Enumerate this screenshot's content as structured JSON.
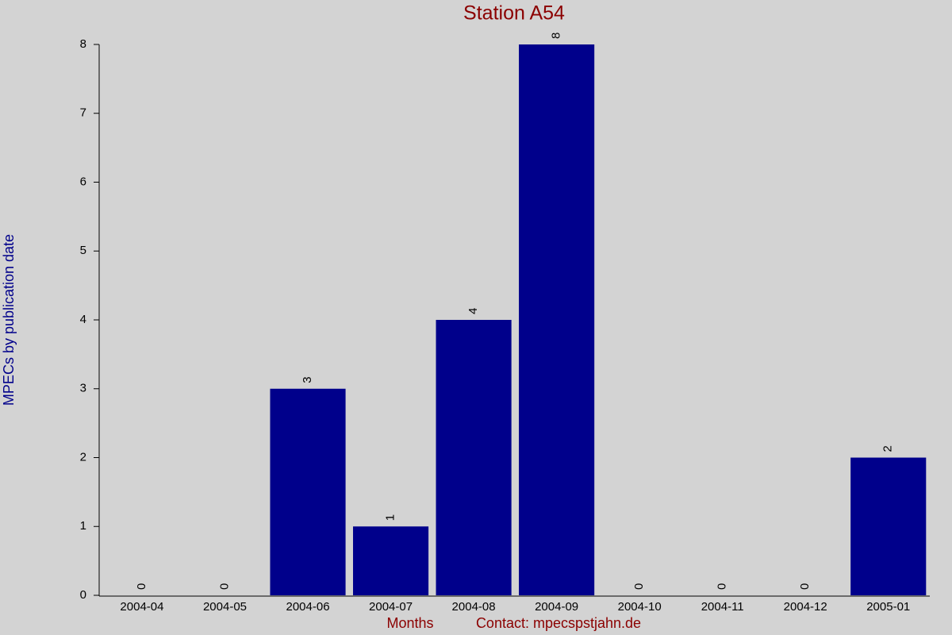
{
  "chart_data": {
    "type": "bar",
    "title": "Station A54",
    "xlabel": "Months",
    "credit": "Contact: mpecspstjahn.de",
    "ylabel": "MPECs by publication date",
    "categories": [
      "2004-04",
      "2004-05",
      "2004-06",
      "2004-07",
      "2004-08",
      "2004-09",
      "2004-10",
      "2004-11",
      "2004-12",
      "2005-01"
    ],
    "values": [
      0,
      0,
      3,
      1,
      4,
      8,
      0,
      0,
      0,
      2
    ],
    "color": "#00008b",
    "ylim": [
      0,
      8
    ],
    "yticks": [
      0,
      1,
      2,
      3,
      4,
      5,
      6,
      7,
      8
    ],
    "grid": false
  }
}
